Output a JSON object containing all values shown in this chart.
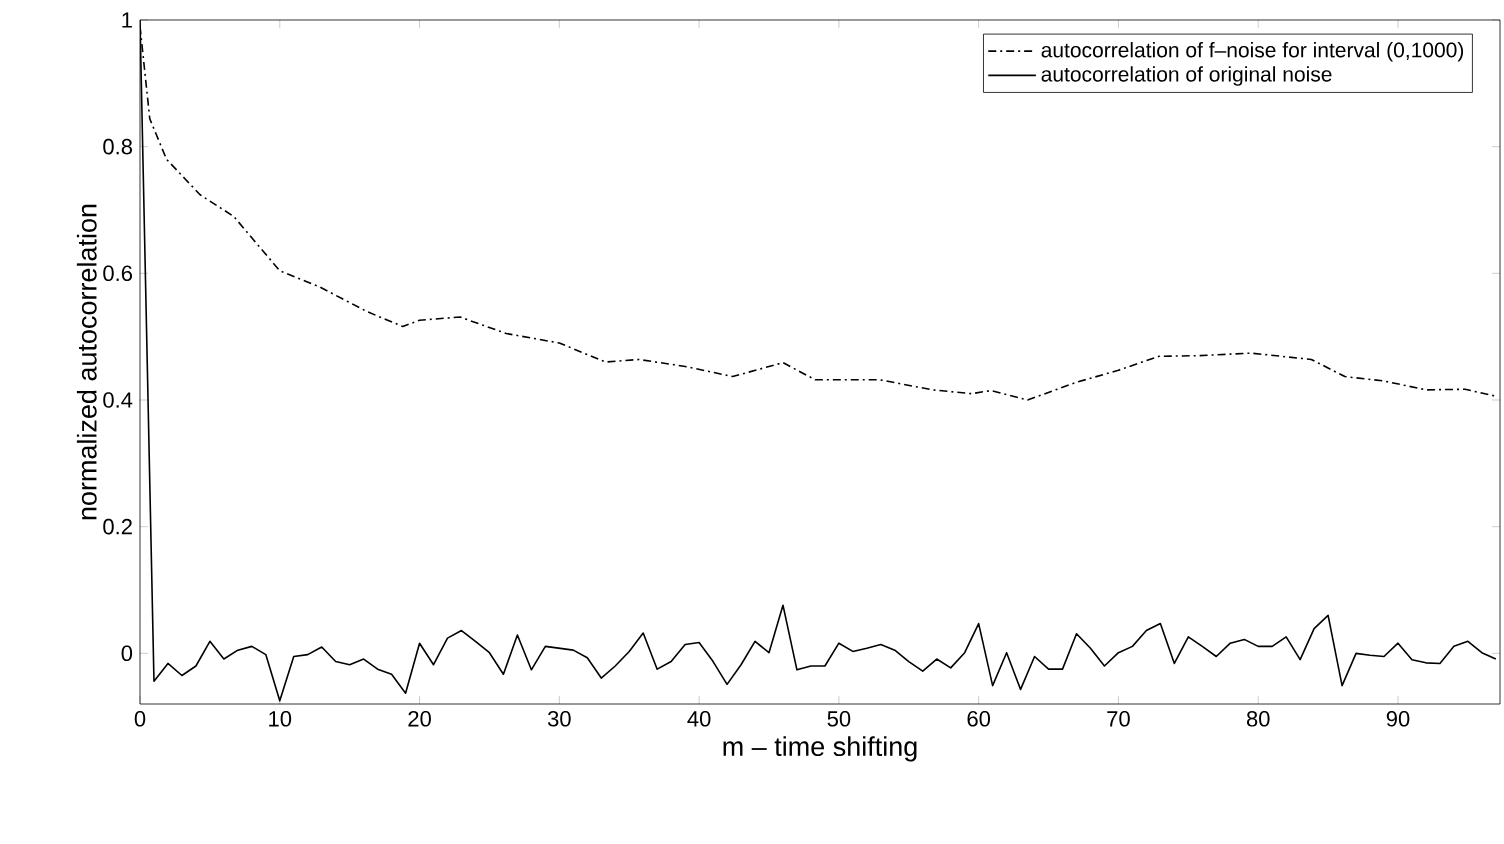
{
  "chart_data": {
    "type": "line",
    "xlabel": "m – time shifting",
    "ylabel": "normalized autocorrelation",
    "xlim": [
      0,
      97.3
    ],
    "ylim": [
      -0.08,
      1
    ],
    "xticks": [
      0,
      10,
      20,
      30,
      40,
      50,
      60,
      70,
      80,
      90
    ],
    "yticks": [
      0,
      0.2,
      0.4,
      0.6,
      0.8,
      1
    ],
    "legend": "top right",
    "grid": false,
    "series": [
      {
        "name": "autocorrelation of f–noise for interval (0,1000)",
        "color": "#000000",
        "line_style": "dashed",
        "x": [
          0,
          0.7,
          1.9,
          4.3,
          6.7,
          10,
          12.9,
          16.2,
          18.8,
          20,
          22.9,
          26.2,
          30,
          33.3,
          35.7,
          39,
          42.4,
          46,
          48.3,
          50.3,
          52.9,
          56.7,
          59.5,
          60.9,
          63.5,
          67,
          70,
          72.9,
          75.7,
          79.5,
          83.8,
          86.2,
          89,
          92,
          94.8,
          97
        ],
        "values": [
          0.99,
          0.844,
          0.78,
          0.724,
          0.69,
          0.604,
          0.578,
          0.54,
          0.516,
          0.526,
          0.531,
          0.505,
          0.49,
          0.46,
          0.464,
          0.453,
          0.437,
          0.459,
          0.432,
          0.432,
          0.432,
          0.416,
          0.41,
          0.415,
          0.4,
          0.428,
          0.447,
          0.469,
          0.47,
          0.474,
          0.464,
          0.437,
          0.43,
          0.416,
          0.417,
          0.406
        ]
      },
      {
        "name": "autocorrelation of original noise",
        "color": "#000000",
        "line_style": "solid",
        "x": [
          0,
          1,
          2,
          3,
          4,
          5,
          6,
          7,
          8,
          9,
          10,
          11,
          12,
          13,
          14,
          15,
          16,
          17,
          18,
          19,
          20,
          21,
          22,
          23,
          24,
          25,
          26,
          27,
          28,
          29,
          30,
          31,
          32,
          33,
          34,
          35,
          36,
          37,
          38,
          39,
          40,
          41,
          42,
          43,
          44,
          45,
          46,
          47,
          48,
          49,
          50,
          51,
          52,
          53,
          54,
          55,
          56,
          57,
          58,
          59,
          60,
          61,
          62,
          63,
          64,
          65,
          66,
          67,
          68,
          69,
          70,
          71,
          72,
          73,
          74,
          75,
          76,
          77,
          78,
          79,
          80,
          81,
          82,
          83,
          84,
          85,
          86,
          87,
          88,
          89,
          90,
          91,
          92,
          93,
          94,
          95,
          96,
          97
        ],
        "values": [
          1.0,
          -0.044,
          -0.016,
          -0.035,
          -0.02,
          0.019,
          -0.009,
          0.005,
          0.011,
          -0.002,
          -0.075,
          -0.005,
          -0.002,
          0.01,
          -0.013,
          -0.018,
          -0.009,
          -0.025,
          -0.033,
          -0.063,
          0.016,
          -0.018,
          0.024,
          0.036,
          0.019,
          0.001,
          -0.033,
          0.029,
          -0.026,
          0.011,
          0.008,
          0.005,
          -0.007,
          -0.039,
          -0.02,
          0.003,
          0.032,
          -0.025,
          -0.013,
          0.014,
          0.017,
          -0.013,
          -0.049,
          -0.018,
          0.019,
          0.001,
          0.076,
          -0.026,
          -0.02,
          -0.02,
          0.016,
          0.003,
          0.008,
          0.014,
          0.005,
          -0.013,
          -0.028,
          -0.009,
          -0.023,
          0.001,
          0.047,
          -0.051,
          0.001,
          -0.057,
          -0.005,
          -0.025,
          -0.025,
          0.031,
          0.008,
          -0.02,
          0.001,
          0.011,
          0.036,
          0.047,
          -0.016,
          0.026,
          0.011,
          -0.005,
          0.016,
          0.022,
          0.011,
          0.011,
          0.026,
          -0.01,
          0.039,
          0.06,
          -0.051,
          0.0,
          -0.003,
          -0.005,
          0.016,
          -0.01,
          -0.015,
          -0.016,
          0.011,
          0.019,
          0.001,
          -0.009
        ]
      }
    ]
  }
}
